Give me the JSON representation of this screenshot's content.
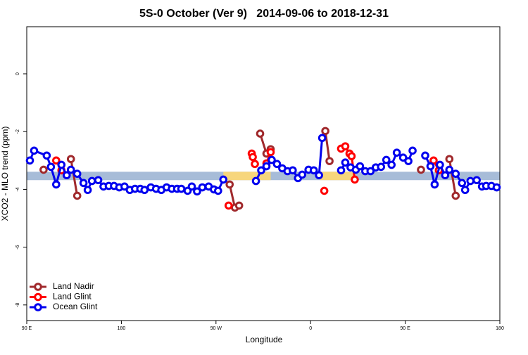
{
  "chart_data": {
    "type": "line",
    "title": "5S-0 October (Ver 9)   2014-09-06 to 2018-12-31",
    "xlabel": "Longitude",
    "ylabel": "XCO2 - MLO trend (ppm)",
    "xlim": [
      90,
      540
    ],
    "ylim": [
      -8.54,
      1.63
    ],
    "xticks": [
      {
        "value": 90,
        "label": "90 E"
      },
      {
        "value": 180,
        "label": "180"
      },
      {
        "value": 270,
        "label": "90 W"
      },
      {
        "value": 360,
        "label": "0"
      },
      {
        "value": 450,
        "label": "90 E"
      },
      {
        "value": 540,
        "label": "180"
      }
    ],
    "yticks": [
      0,
      -2,
      -4,
      -6,
      -8
    ],
    "legend": "bottom-left",
    "band": [
      -3.68,
      -3.39
    ],
    "band_color": "#a7bcd8",
    "band_highlights": [
      [
        277,
        322
      ],
      [
        369,
        403
      ]
    ],
    "highlight_color": "#f7d67c",
    "series": [
      {
        "name": "Land Nadir",
        "color": "#a0292c",
        "x": [
          106,
          null,
          132,
          138,
          null,
          283,
          288,
          292,
          null,
          312,
          318,
          322,
          null,
          374,
          378,
          null,
          465,
          null,
          492,
          498
        ],
        "values": [
          -3.32,
          null,
          -2.95,
          -4.22,
          null,
          -3.83,
          -4.63,
          -4.56,
          null,
          -2.07,
          -2.76,
          -2.61,
          null,
          -1.98,
          -3.02,
          null,
          -3.32,
          null,
          -2.95,
          -4.22
        ]
      },
      {
        "name": "Land Glint",
        "color": "#ff0000",
        "x": [
          118,
          123,
          null,
          282,
          null,
          304,
          305,
          307,
          null,
          318,
          322,
          null,
          373,
          null,
          389,
          393,
          397,
          399,
          402,
          null,
          477,
          482
        ],
        "values": [
          -3.0,
          -3.34,
          null,
          -4.56,
          null,
          -2.76,
          -2.88,
          -3.12,
          null,
          -3.1,
          -2.71,
          null,
          -4.05,
          null,
          -2.59,
          -2.51,
          -2.76,
          -2.85,
          -3.66,
          null,
          -3.0,
          -3.34
        ]
      },
      {
        "name": "Ocean Glint",
        "color": "#0000ee",
        "x": [
          93,
          97,
          109,
          113,
          118,
          123,
          128,
          132,
          138,
          144,
          148,
          152,
          158,
          163,
          168,
          173,
          178,
          183,
          188,
          193,
          198,
          202,
          208,
          213,
          218,
          223,
          228,
          233,
          237,
          243,
          247,
          252,
          257,
          263,
          268,
          272,
          277,
          null,
          308,
          313,
          318,
          323,
          328,
          333,
          338,
          343,
          348,
          352,
          358,
          363,
          368,
          371,
          null,
          389,
          393,
          398,
          403,
          407,
          412,
          417,
          422,
          427,
          432,
          437,
          442,
          448,
          453,
          457,
          null,
          469,
          474,
          478,
          483,
          488,
          492,
          498,
          504,
          507,
          512,
          518,
          523,
          527,
          532,
          537
        ],
        "values": [
          -3.0,
          -2.66,
          -2.83,
          -3.22,
          -3.83,
          -3.15,
          -3.51,
          -3.32,
          -3.46,
          -3.78,
          -4.02,
          -3.71,
          -3.68,
          -3.9,
          -3.88,
          -3.88,
          -3.93,
          -3.9,
          -4.02,
          -3.98,
          -3.98,
          -4.02,
          -3.93,
          -3.98,
          -4.02,
          -3.93,
          -3.98,
          -3.98,
          -3.98,
          -4.05,
          -3.9,
          -4.07,
          -3.93,
          -3.9,
          -4.0,
          -4.05,
          -3.66,
          null,
          -3.71,
          -3.34,
          -3.2,
          -2.98,
          -3.12,
          -3.27,
          -3.37,
          -3.34,
          -3.61,
          -3.49,
          -3.32,
          -3.34,
          -3.51,
          -2.22,
          null,
          -3.34,
          -3.07,
          -3.24,
          -3.32,
          -3.2,
          -3.37,
          -3.37,
          -3.24,
          -3.22,
          -2.98,
          -3.15,
          -2.73,
          -2.9,
          -3.02,
          -2.66,
          null,
          -2.83,
          -3.2,
          -3.83,
          -3.15,
          -3.51,
          -3.32,
          -3.46,
          -3.78,
          -4.02,
          -3.71,
          -3.68,
          -3.9,
          -3.88,
          -3.88,
          -3.93
        ]
      }
    ]
  }
}
